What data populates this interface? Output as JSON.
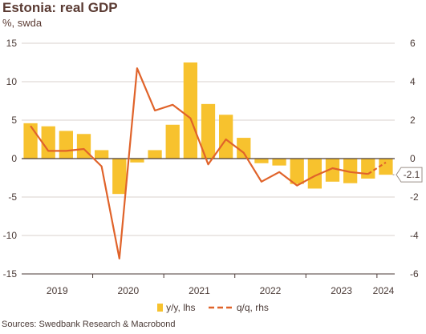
{
  "title": "Estonia: real GDP",
  "subtitle": "%, swda",
  "source": "Sources: Swedbank Research & Macrobond",
  "colors": {
    "bar": "#F7C22E",
    "line": "#E0632A",
    "axis": "#4a3a36",
    "grid": "#d9d2cc"
  },
  "chart_data": {
    "type": "bar+line",
    "x_labels": [
      "2019",
      "2020",
      "2021",
      "2022",
      "2023",
      "2024"
    ],
    "y_left": {
      "min": -15,
      "max": 15,
      "ticks": [
        -15,
        -10,
        -5,
        0,
        5,
        10,
        15
      ]
    },
    "y_right": {
      "min": -6,
      "max": 6,
      "ticks": [
        -6,
        -4,
        -2,
        0,
        2,
        4,
        6
      ]
    },
    "quarters": [
      "2019Q1",
      "2019Q2",
      "2019Q3",
      "2019Q4",
      "2020Q1",
      "2020Q2",
      "2020Q3",
      "2020Q4",
      "2021Q1",
      "2021Q2",
      "2021Q3",
      "2021Q4",
      "2022Q1",
      "2022Q2",
      "2022Q3",
      "2022Q4",
      "2023Q1",
      "2023Q2",
      "2023Q3",
      "2023Q4",
      "2024Q1"
    ],
    "series": [
      {
        "name": "y/y, lhs",
        "type": "bar",
        "axis": "left",
        "values": [
          4.6,
          4.2,
          3.6,
          3.2,
          1.1,
          -4.6,
          -0.5,
          1.1,
          4.4,
          12.5,
          7.1,
          5.7,
          2.7,
          -0.6,
          -0.9,
          -3.3,
          -3.9,
          -3.0,
          -3.2,
          -2.6,
          -2.1
        ]
      },
      {
        "name": "q/q, rhs",
        "type": "line",
        "axis": "right",
        "values": [
          1.7,
          0.4,
          0.4,
          0.5,
          -0.4,
          -5.2,
          4.7,
          2.5,
          2.8,
          2.1,
          -0.3,
          1.0,
          0.3,
          -1.2,
          -0.7,
          -1.4,
          -0.9,
          -0.5,
          -0.7,
          -0.8,
          -0.2
        ],
        "dashed_last_segment": true
      }
    ],
    "annotation": {
      "text": "-2.1"
    },
    "legend": [
      "y/y, lhs",
      "q/q, rhs"
    ],
    "legend_position": "bottom"
  }
}
